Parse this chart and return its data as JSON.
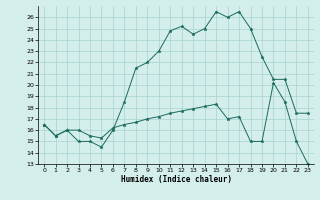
{
  "xlabel": "Humidex (Indice chaleur)",
  "xlim": [
    -0.5,
    23.5
  ],
  "ylim": [
    13,
    27
  ],
  "yticks": [
    13,
    14,
    15,
    16,
    17,
    18,
    19,
    20,
    21,
    22,
    23,
    24,
    25,
    26
  ],
  "xticks": [
    0,
    1,
    2,
    3,
    4,
    5,
    6,
    7,
    8,
    9,
    10,
    11,
    12,
    13,
    14,
    15,
    16,
    17,
    18,
    19,
    20,
    21,
    22,
    23
  ],
  "line_color": "#1a6b5e",
  "bg_color": "#d4eeec",
  "grid_color": "#a8d4d0",
  "line1_y": [
    16.5,
    15.5,
    16.0,
    15.0,
    15.0,
    14.5,
    16.0,
    18.5,
    21.5,
    22.0,
    23.0,
    24.8,
    25.2,
    24.5,
    25.0,
    26.5,
    26.0,
    26.5,
    25.0,
    22.5,
    20.5,
    20.5,
    17.5,
    17.5
  ],
  "line2_y": [
    16.5,
    15.5,
    16.0,
    16.0,
    15.5,
    15.3,
    16.2,
    16.5,
    16.7,
    17.0,
    17.2,
    17.5,
    17.7,
    17.9,
    18.1,
    18.3,
    17.0,
    17.2,
    15.0,
    15.0,
    20.2,
    18.5,
    15.0,
    13.0
  ],
  "markersize": 2.5,
  "linewidth": 0.7
}
